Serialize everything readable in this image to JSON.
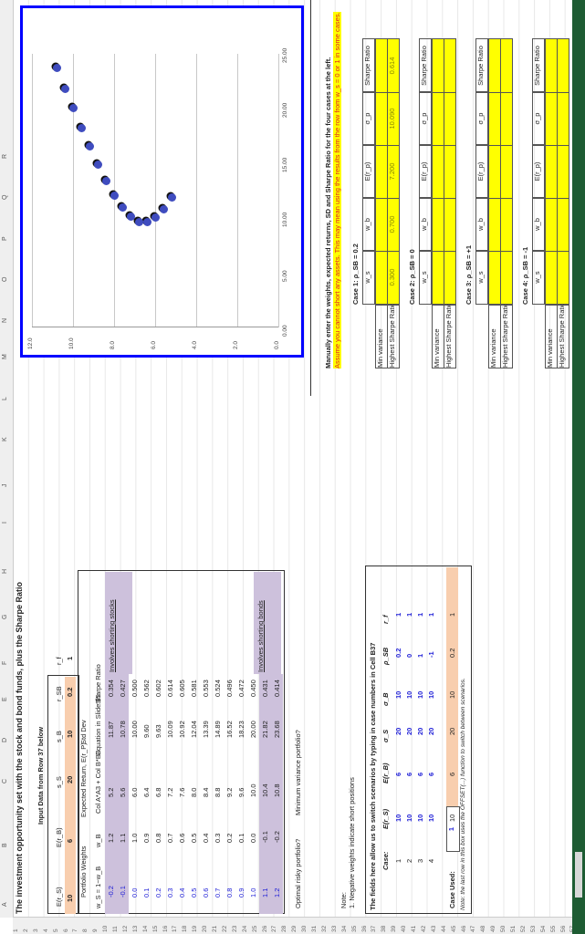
{
  "column_headers": [
    "A",
    "B",
    "C",
    "D",
    "E",
    "F",
    "G",
    "H",
    "I",
    "J",
    "K",
    "L",
    "M",
    "N",
    "O",
    "P",
    "Q",
    "R"
  ],
  "row_numbers": [
    "1",
    "2",
    "3",
    "4",
    "5",
    "6",
    "7",
    "8",
    "9",
    "10",
    "11",
    "12",
    "13",
    "14",
    "15",
    "16",
    "17",
    "18",
    "19",
    "20",
    "21",
    "22",
    "23",
    "24",
    "25",
    "26",
    "27",
    "28",
    "29",
    "30",
    "31",
    "32",
    "33",
    "34",
    "35",
    "36",
    "37",
    "38",
    "39",
    "40",
    "41",
    "42",
    "43",
    "44",
    "45",
    "46",
    "47",
    "48",
    "49",
    "50",
    "51",
    "52",
    "53",
    "54",
    "55",
    "56",
    "57"
  ],
  "title": "The investment opportunity set with the stock and bond funds, plus the Sharpe Ratio",
  "input_label": "Input Data from Row 37 below",
  "inputs": {
    "headers": [
      "E(r_S)",
      "E(r_B)",
      "s_S",
      "s_B",
      "r_SB",
      "r_f"
    ],
    "values": [
      "10",
      "6",
      "20",
      "10",
      "0.2",
      "1"
    ]
  },
  "table_headers": {
    "portfolio_weights": "Portfolio Weights",
    "ws_formula": "w_S = 1−w_B",
    "wb": "w_B",
    "expected_return": "Expected Return, E(r_P)",
    "er_formula": "Col A*A3 + Col B*B3",
    "std_dev": "Std Dev",
    "sd_formula": "Equation in Slide $5",
    "sharpe": "Sharpe Ratio"
  },
  "rows": [
    {
      "ws": "-0.2",
      "wb": "1.2",
      "er": "5.2",
      "sd": "11.87",
      "sr": "0.354",
      "shade": true
    },
    {
      "ws": "-0.1",
      "wb": "1.1",
      "er": "5.6",
      "sd": "10.78",
      "sr": "0.427",
      "shade": true
    },
    {
      "ws": "0.0",
      "wb": "1.0",
      "er": "6.0",
      "sd": "10.00",
      "sr": "0.500"
    },
    {
      "ws": "0.1",
      "wb": "0.9",
      "er": "6.4",
      "sd": "9.60",
      "sr": "0.562"
    },
    {
      "ws": "0.2",
      "wb": "0.8",
      "er": "6.8",
      "sd": "9.63",
      "sr": "0.602"
    },
    {
      "ws": "0.3",
      "wb": "0.7",
      "er": "7.2",
      "sd": "10.09",
      "sr": "0.614"
    },
    {
      "ws": "0.4",
      "wb": "0.6",
      "er": "7.6",
      "sd": "10.92",
      "sr": "0.605"
    },
    {
      "ws": "0.5",
      "wb": "0.5",
      "er": "8.0",
      "sd": "12.04",
      "sr": "0.581"
    },
    {
      "ws": "0.6",
      "wb": "0.4",
      "er": "8.4",
      "sd": "13.39",
      "sr": "0.553"
    },
    {
      "ws": "0.7",
      "wb": "0.3",
      "er": "8.8",
      "sd": "14.89",
      "sr": "0.524"
    },
    {
      "ws": "0.8",
      "wb": "0.2",
      "er": "9.2",
      "sd": "16.52",
      "sr": "0.496"
    },
    {
      "ws": "0.9",
      "wb": "0.1",
      "er": "9.6",
      "sd": "18.23",
      "sr": "0.472"
    },
    {
      "ws": "1.0",
      "wb": "0.0",
      "er": "10.0",
      "sd": "20.00",
      "sr": "0.450"
    },
    {
      "ws": "1.1",
      "wb": "-0.1",
      "er": "10.4",
      "sd": "21.82",
      "sr": "0.431",
      "shade": true
    },
    {
      "ws": "1.2",
      "wb": "-0.2",
      "er": "10.8",
      "sd": "23.68",
      "sr": "0.414",
      "shade": true
    }
  ],
  "shorting_labels": {
    "stocks": "Involves shorting stocks",
    "bonds": "Involves shorting bonds"
  },
  "questions": {
    "optimal": "Optimal risky portfolio?",
    "minvar": "Minimum variance portfolio?"
  },
  "note": {
    "title": "Note:",
    "line1": "1. Negative weights indicate short positions"
  },
  "scenarios": {
    "title": "The fields here allow us to switch scenarios by typing in case numbers in Cell B37",
    "headers": [
      "Case:",
      "E(r_S)",
      "E(r_B)",
      "σ_S",
      "σ_B",
      "ρ_SB",
      "r_f"
    ],
    "cases": [
      [
        "1",
        "10",
        "6",
        "20",
        "10",
        "0.2",
        "1"
      ],
      [
        "2",
        "10",
        "6",
        "20",
        "10",
        "0",
        "1"
      ],
      [
        "3",
        "10",
        "6",
        "20",
        "10",
        "1",
        "1"
      ],
      [
        "4",
        "10",
        "6",
        "20",
        "10",
        "-1",
        "1"
      ]
    ],
    "case_used_label": "Case Used:",
    "case_used_value": "1",
    "case_used_row": [
      "10",
      "6",
      "20",
      "10",
      "0.2",
      "1"
    ],
    "footnote": "Note: the last row in this box uses the OFFSET(...) function to switch between scenarios."
  },
  "manual": {
    "instruction": "Manually enter the weights, expected returns, SD and Sharpe Ratio for the four cases at the left.",
    "warning": "Assume you cannot short any assets. This may mean using the results from the row from w_s = 0 or 1 in some cases.",
    "row_labels": [
      "Min variance",
      "Highest Sharpe Ratio"
    ],
    "col_headers": [
      "w_s",
      "w_b",
      "E(r_p)",
      "σ_p",
      "Sharpe Ratio"
    ],
    "cases": [
      {
        "title": "Case 1: ρ_SB = 0.2",
        "highest": [
          "0.300",
          "0.700",
          "7.200",
          "10.090",
          "0.614"
        ]
      },
      {
        "title": "Case 2: ρ_SB = 0",
        "highest": [
          "",
          "",
          "",
          "",
          ""
        ]
      },
      {
        "title": "Case 3: ρ_SB = +1",
        "highest": [
          "",
          "",
          "",
          "",
          ""
        ]
      },
      {
        "title": "Case 4: ρ_SB = -1",
        "highest": [
          "",
          "",
          "",
          "",
          ""
        ]
      }
    ]
  },
  "chart_data": {
    "type": "scatter",
    "title": "",
    "xlabel": "Std Dev",
    "ylabel": "Expected Return",
    "x_ticks": [
      "0.00",
      "5.00",
      "10.00",
      "15.00",
      "20.00",
      "25.00"
    ],
    "y_ticks": [
      "0.0",
      "2.0",
      "4.0",
      "6.0",
      "8.0",
      "10.0",
      "12.0"
    ],
    "xlim": [
      0,
      25
    ],
    "ylim": [
      0,
      12
    ],
    "grid": true,
    "x": [
      11.87,
      10.78,
      10.0,
      9.6,
      9.63,
      10.09,
      10.92,
      12.04,
      13.39,
      14.89,
      16.52,
      18.23,
      20.0,
      21.82,
      23.68
    ],
    "y": [
      5.2,
      5.6,
      6.0,
      6.4,
      6.8,
      7.2,
      7.6,
      8.0,
      8.4,
      8.8,
      9.2,
      9.6,
      10.0,
      10.4,
      10.8
    ],
    "marker_color": "#3f4cbf"
  }
}
